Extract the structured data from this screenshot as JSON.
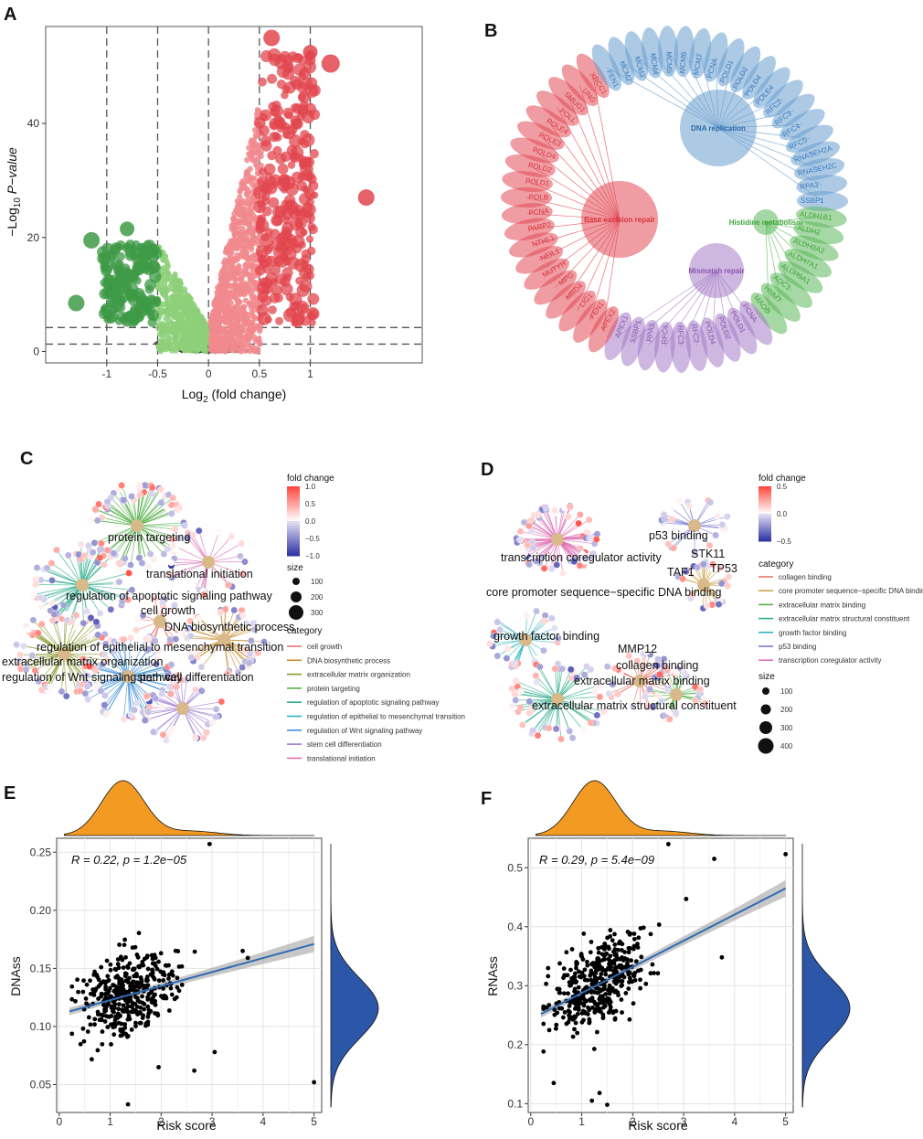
{
  "panels": {
    "A": "A",
    "B": "B",
    "C": "C",
    "D": "D",
    "E": "E",
    "F": "F"
  },
  "colors": {
    "up_strong": "#e2454d",
    "up_light": "#f1898e",
    "down_strong": "#3e9a46",
    "down_light": "#8ed07a",
    "neutral": "#3a3a3a",
    "blue_ring": "#6a9fcf",
    "red_ring": "#e24a55",
    "green_ring": "#5db85b",
    "purple_ring": "#a57cc6",
    "orange_density": "#f39a23",
    "blue_density": "#2c56a8",
    "reg_line": "#2f6ab3"
  },
  "chart_data": [
    {
      "id": "A",
      "type": "scatter",
      "title": "",
      "xlabel_base": "Log",
      "xlabel_sub": "2",
      "xlabel_rest": " (fold change)",
      "ylabel_prefix": "−Log",
      "ylabel_sub": "10",
      "ylabel_rest": " P−value",
      "xlim": [
        -1.6,
        2.1
      ],
      "ylim": [
        -2,
        57
      ],
      "xticks": [
        "-1",
        "-0.5",
        "0",
        "0.5",
        "1"
      ],
      "xtick_values": [
        -1,
        -0.5,
        0,
        0.5,
        1
      ],
      "yticks": [
        "0",
        "20",
        "40"
      ],
      "ytick_values": [
        0,
        20,
        40
      ],
      "vlines": [
        -1,
        -0.5,
        0,
        0.5,
        1
      ],
      "hlines": [
        1.3,
        4.2
      ],
      "highlight_points": [
        {
          "x": 1.55,
          "y": 27,
          "r": 9,
          "group": "up_strong"
        },
        {
          "x": 1.2,
          "y": 50.5,
          "r": 10,
          "group": "up_strong"
        },
        {
          "x": 1.0,
          "y": 52.5,
          "r": 8,
          "group": "up_strong"
        },
        {
          "x": 0.62,
          "y": 55,
          "r": 9,
          "group": "up_strong"
        },
        {
          "x": -1.3,
          "y": 8.5,
          "r": 9,
          "group": "down_strong"
        },
        {
          "x": -1.15,
          "y": 19.5,
          "r": 9,
          "group": "down_strong"
        },
        {
          "x": -0.8,
          "y": 21.5,
          "r": 8,
          "group": "down_strong"
        }
      ]
    },
    {
      "id": "B",
      "type": "network",
      "hubs": [
        {
          "label": "DNA replication",
          "color": "#6a9fcf"
        },
        {
          "label": "Base excision repair",
          "color": "#e24a55"
        },
        {
          "label": "Histidine metabolism",
          "color": "#5db85b"
        },
        {
          "label": "Mismatch repair",
          "color": "#a57cc6"
        }
      ],
      "ring_genes": [
        {
          "g": "MCM7",
          "c": "blue"
        },
        {
          "g": "PCNA",
          "c": "blue"
        },
        {
          "g": "POLD1",
          "c": "blue"
        },
        {
          "g": "POLD2",
          "c": "blue"
        },
        {
          "g": "POLD4",
          "c": "blue"
        },
        {
          "g": "POLE4",
          "c": "blue"
        },
        {
          "g": "RFC2",
          "c": "blue"
        },
        {
          "g": "RFC3",
          "c": "blue"
        },
        {
          "g": "RFC4",
          "c": "blue"
        },
        {
          "g": "RFC5",
          "c": "blue"
        },
        {
          "g": "RNASEH2A",
          "c": "blue"
        },
        {
          "g": "RNASEH2C",
          "c": "blue"
        },
        {
          "g": "RPA3",
          "c": "blue"
        },
        {
          "g": "SSBP1",
          "c": "blue"
        },
        {
          "g": "ALDH1B1",
          "c": "green"
        },
        {
          "g": "ALDH2",
          "c": "green"
        },
        {
          "g": "ALDH3A2",
          "c": "green"
        },
        {
          "g": "ALDH7A1",
          "c": "green"
        },
        {
          "g": "ALDH9A1",
          "c": "green"
        },
        {
          "g": "AOC1",
          "c": "green"
        },
        {
          "g": "HNMT",
          "c": "green"
        },
        {
          "g": "MAOB",
          "c": "green"
        },
        {
          "g": "PCNA",
          "c": "purple"
        },
        {
          "g": "POLD1",
          "c": "purple"
        },
        {
          "g": "POLD2",
          "c": "purple"
        },
        {
          "g": "POLD4",
          "c": "purple"
        },
        {
          "g": "RFC2",
          "c": "purple"
        },
        {
          "g": "RFC3",
          "c": "purple"
        },
        {
          "g": "RFC4",
          "c": "purple"
        },
        {
          "g": "RPA3",
          "c": "purple"
        },
        {
          "g": "SSBP1",
          "c": "purple"
        },
        {
          "g": "APEX1",
          "c": "purple"
        },
        {
          "g": "APEX2",
          "c": "red"
        },
        {
          "g": "FEN1",
          "c": "red"
        },
        {
          "g": "LIG1",
          "c": "red"
        },
        {
          "g": "MBD4",
          "c": "red"
        },
        {
          "g": "MPG",
          "c": "red"
        },
        {
          "g": "MUTYH",
          "c": "red"
        },
        {
          "g": "NEIL1",
          "c": "red"
        },
        {
          "g": "NTHL1",
          "c": "red"
        },
        {
          "g": "PARP2",
          "c": "red"
        },
        {
          "g": "PCNA",
          "c": "red"
        },
        {
          "g": "POLB",
          "c": "red"
        },
        {
          "g": "POLD1",
          "c": "red"
        },
        {
          "g": "POLD2",
          "c": "red"
        },
        {
          "g": "POLD4",
          "c": "red"
        },
        {
          "g": "POLE3",
          "c": "red"
        },
        {
          "g": "POLE4",
          "c": "red"
        },
        {
          "g": "POLL",
          "c": "red"
        },
        {
          "g": "SMUG1",
          "c": "red"
        },
        {
          "g": "UNG",
          "c": "red"
        },
        {
          "g": "XRCC1",
          "c": "red"
        },
        {
          "g": "FEN1",
          "c": "blue"
        },
        {
          "g": "MCM2",
          "c": "blue"
        },
        {
          "g": "MCM3",
          "c": "blue"
        },
        {
          "g": "MCM4",
          "c": "blue"
        },
        {
          "g": "MCM5",
          "c": "blue"
        },
        {
          "g": "MCM6",
          "c": "blue"
        }
      ]
    },
    {
      "id": "C",
      "type": "network",
      "terms": [
        "protein targeting",
        "translational initiation",
        "regulation of apoptotic signaling pathway",
        "cell growth",
        "DNA biosynthetic process",
        "regulation of epithelial to mesenchymal transition",
        "extracellular matrix organization",
        "regulation of Wnt signaling pathway",
        "stem cell differentiation"
      ],
      "legend_fold_title": "fold change",
      "legend_fold_ticks": [
        "1.0",
        "0.5",
        "0.0",
        "−0.5",
        "−1.0"
      ],
      "legend_size_title": "size",
      "legend_size_values": [
        "100",
        "200",
        "300"
      ],
      "legend_cat_title": "category",
      "categories": [
        {
          "label": "cell growth",
          "color": "#e8776d"
        },
        {
          "label": "DNA biosynthetic process",
          "color": "#c58a2a"
        },
        {
          "label": "extracellular matrix organization",
          "color": "#8a9a2a"
        },
        {
          "label": "protein targeting",
          "color": "#55b04a"
        },
        {
          "label": "regulation of apoptotic signaling pathway",
          "color": "#2eae8c"
        },
        {
          "label": "regulation of epithelial to mesenchymal transition",
          "color": "#2db3c4"
        },
        {
          "label": "regulation of Wnt signaling pathway",
          "color": "#3d8fd6"
        },
        {
          "label": "stem cell differentiation",
          "color": "#9a76d2"
        },
        {
          "label": "translational initiation",
          "color": "#e06fb5"
        }
      ]
    },
    {
      "id": "D",
      "type": "network",
      "terms": [
        "p53 binding",
        "transcription coregulator activity",
        "STK11",
        "TAF1",
        "TP53",
        "core promoter sequence−specific DNA binding",
        "growth factor binding",
        "MMP12",
        "collagen binding",
        "extracellular matrix binding",
        "extracellular matrix structural constituent"
      ],
      "legend_fold_title": "fold change",
      "legend_fold_ticks": [
        "0.5",
        "0.0",
        "−0.5"
      ],
      "legend_cat_title": "category",
      "categories": [
        {
          "label": "collagen binding",
          "color": "#e8776d"
        },
        {
          "label": "core promoter sequence−specific DNA binding",
          "color": "#c9a24a"
        },
        {
          "label": "extracellular matrix binding",
          "color": "#55b04a"
        },
        {
          "label": "extracellular matrix structural constituent",
          "color": "#2eae8c"
        },
        {
          "label": "growth factor binding",
          "color": "#2db3c4"
        },
        {
          "label": "p53 binding",
          "color": "#7a7ad8"
        },
        {
          "label": "transcription coregulator activity",
          "color": "#e06fb5"
        }
      ],
      "legend_size_title": "size",
      "legend_size_values": [
        "100",
        "200",
        "300",
        "400"
      ]
    },
    {
      "id": "E",
      "type": "scatter",
      "annotation": "R = 0.22, p = 1.2e−05",
      "xlabel": "Risk score",
      "ylabel": "DNAss",
      "xlim": [
        -0.05,
        5.15
      ],
      "ylim": [
        0.026,
        0.262
      ],
      "xticks": [
        "0",
        "1",
        "2",
        "3",
        "4",
        "5"
      ],
      "xtick_values": [
        0,
        1,
        2,
        3,
        4,
        5
      ],
      "yticks": [
        "0.05",
        "0.10",
        "0.15",
        "0.20",
        "0.25"
      ],
      "ytick_values": [
        0.05,
        0.1,
        0.15,
        0.2,
        0.25
      ],
      "fit": {
        "x0": 0.2,
        "y0": 0.113,
        "x1": 5.0,
        "y1": 0.171
      },
      "outliers": [
        [
          2.95,
          0.257
        ],
        [
          3.6,
          0.165
        ],
        [
          3.05,
          0.078
        ],
        [
          2.65,
          0.062
        ],
        [
          5.0,
          0.052
        ],
        [
          1.35,
          0.033
        ],
        [
          1.95,
          0.065
        ],
        [
          3.7,
          0.159
        ]
      ]
    },
    {
      "id": "F",
      "type": "scatter",
      "annotation": "R = 0.29, p = 5.4e−09",
      "xlabel": "Risk score",
      "ylabel": "RNAss",
      "xlim": [
        -0.05,
        5.15
      ],
      "ylim": [
        0.085,
        0.55
      ],
      "xticks": [
        "0",
        "1",
        "2",
        "3",
        "4",
        "5"
      ],
      "xtick_values": [
        0,
        1,
        2,
        3,
        4,
        5
      ],
      "yticks": [
        "0.1",
        "0.2",
        "0.3",
        "0.4",
        "0.5"
      ],
      "ytick_values": [
        0.1,
        0.2,
        0.3,
        0.4,
        0.5
      ],
      "fit": {
        "x0": 0.2,
        "y0": 0.252,
        "x1": 5.0,
        "y1": 0.465
      },
      "outliers": [
        [
          2.7,
          0.54
        ],
        [
          3.6,
          0.515
        ],
        [
          5.0,
          0.523
        ],
        [
          3.75,
          0.348
        ],
        [
          0.45,
          0.135
        ],
        [
          1.35,
          0.118
        ],
        [
          1.5,
          0.098
        ],
        [
          1.2,
          0.105
        ],
        [
          3.05,
          0.447
        ]
      ]
    }
  ]
}
